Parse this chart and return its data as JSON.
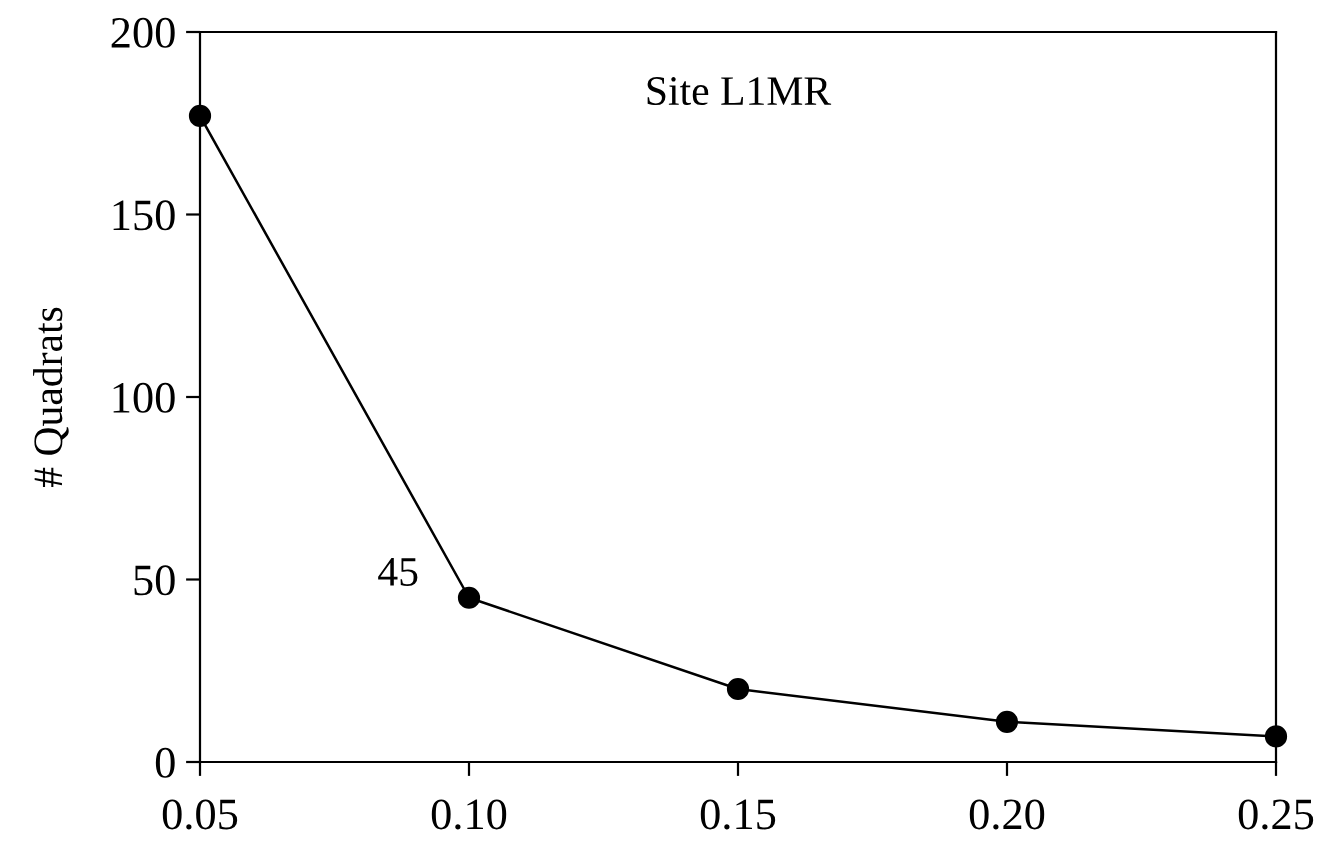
{
  "chart_data": {
    "type": "line",
    "title": "Site L1MR",
    "ylabel": "# Quadrats",
    "x": [
      0.05,
      0.1,
      0.15,
      0.2,
      0.25
    ],
    "series": [
      {
        "color": "#000000",
        "values": [
          177,
          45,
          20,
          11,
          7
        ]
      }
    ],
    "xlim": [
      0.05,
      0.25
    ],
    "ylim": [
      0,
      200
    ],
    "xticks": [
      {
        "value": 0.05,
        "label": "0.05"
      },
      {
        "value": 0.1,
        "label": "0.10"
      },
      {
        "value": 0.15,
        "label": "0.15"
      },
      {
        "value": 0.2,
        "label": "0.20"
      },
      {
        "value": 0.25,
        "label": "0.25"
      }
    ],
    "yticks": [
      0,
      50,
      100,
      150,
      200
    ],
    "annotations": [
      {
        "text": "45",
        "x": 0.1,
        "y": 45
      }
    ],
    "marker": "circle",
    "line_style": "solid",
    "grid": false,
    "legend": false
  }
}
